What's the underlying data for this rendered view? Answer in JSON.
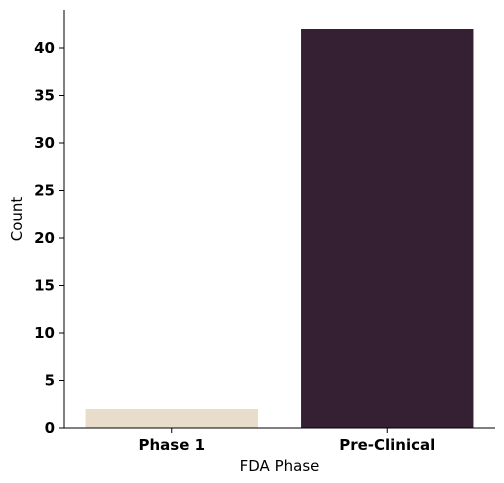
{
  "chart_data": {
    "type": "bar",
    "categories": [
      "Phase 1",
      "Pre-Clinical"
    ],
    "values": [
      2,
      42
    ],
    "colors": [
      "#e8dccb",
      "#352033"
    ],
    "title": "",
    "xlabel": "FDA Phase",
    "ylabel": "Count",
    "ylim": [
      0,
      44
    ],
    "yticks": [
      0,
      5,
      10,
      15,
      20,
      25,
      30,
      35,
      40
    ],
    "grid": false,
    "legend": "none"
  }
}
